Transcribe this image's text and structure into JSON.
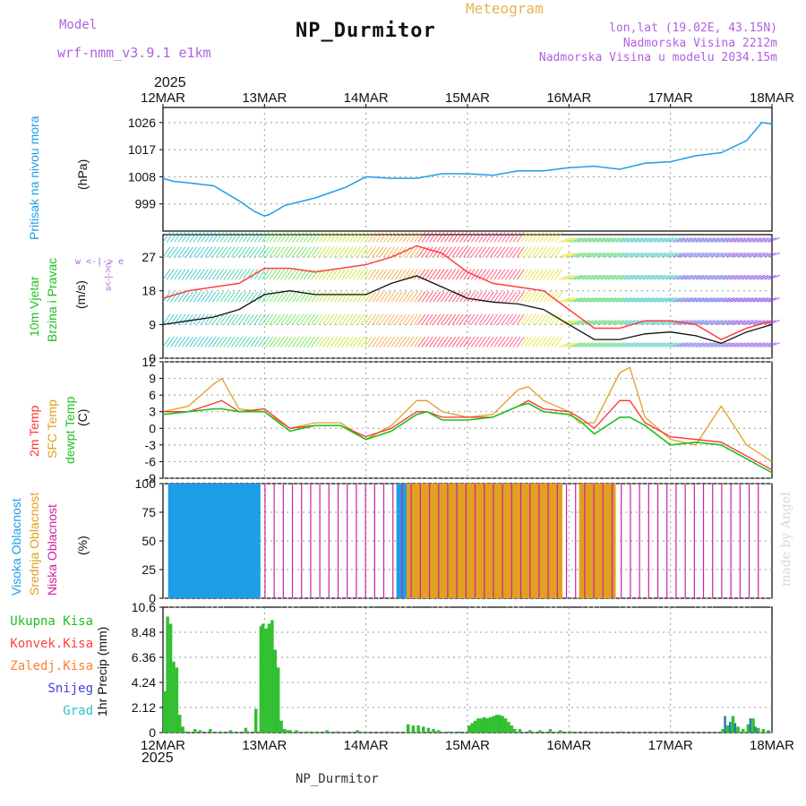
{
  "header": {
    "model_label": "Model",
    "model_value": "wrf-nmm_v3.9.1 e1km",
    "title": "NP_Durmitor",
    "meteogram": "Meteogram",
    "lonlat": "lon,lat (19.02E, 43.15N)",
    "altitude": "Nadmorska Visina 2212m",
    "model_altitude": "Nadmorska Visina u modelu 2034.15m"
  },
  "footer": {
    "station": "NP_Durmitor"
  },
  "watermark": "made by Angel",
  "time_axis": {
    "year": "2025",
    "ticks": [
      "12MAR",
      "13MAR",
      "14MAR",
      "15MAR",
      "16MAR",
      "17MAR",
      "18MAR"
    ]
  },
  "panels": {
    "pressure": {
      "label": "Pritisak na nivou mora",
      "unit": "(hPa)",
      "ticks": [
        "1026",
        "1017",
        "1008",
        "999"
      ]
    },
    "wind": {
      "label1": "10m Vjetar",
      "label2": "Brzina i Pravac",
      "unit": "(m/s)",
      "ticks": [
        "27",
        "18",
        "9",
        "0"
      ],
      "compass": "w <-|-> e",
      "compass_v": "s<-|->n"
    },
    "temp": {
      "label1": "2m Temp",
      "label2": "SFC Temp",
      "label3": "dewpt Temp",
      "unit": "(C)",
      "ticks": [
        "12",
        "9",
        "6",
        "3",
        "0",
        "-3",
        "-6",
        "-9"
      ]
    },
    "cloud": {
      "label1": "Visoka Oblacnost",
      "label2": "Srednja Oblacnost",
      "label3": "Niska Oblacnost",
      "unit": "(%)",
      "ticks": [
        "100",
        "75",
        "50",
        "25",
        "0"
      ]
    },
    "precip": {
      "legend": [
        "Ukupna Kisa",
        "Konvek.Kisa",
        "Zaledj.Kisa",
        "Snijeg",
        "Grad"
      ],
      "unit": "1hr Precip (mm)",
      "ticks": [
        "10.6",
        "8.48",
        "6.36",
        "4.24",
        "2.12",
        "0"
      ]
    }
  },
  "colors": {
    "pressure": "#1e9ee6",
    "wind_speed": "#111111",
    "gust": "#ff4040",
    "t2m": "#ff3030",
    "sfc": "#e0a020",
    "dewpt": "#20c020",
    "cloud_high": "#1e9ee6",
    "cloud_mid": "#e0a020",
    "cloud_low": "#d020a0",
    "rain": "#30c030",
    "conv": "#ff4040",
    "frz": "#ff8030",
    "snow": "#4040e0",
    "hail": "#30c0c0"
  },
  "chart_data": [
    {
      "type": "line",
      "title": "Pritisak na nivou mora",
      "ylabel": "(hPa)",
      "ylim": [
        990,
        1031
      ],
      "x_days": [
        0,
        0.1,
        0.25,
        0.5,
        0.75,
        0.9,
        1.0,
        1.05,
        1.2,
        1.5,
        1.8,
        2.0,
        2.25,
        2.5,
        2.75,
        3.0,
        3.25,
        3.5,
        3.75,
        4.0,
        4.25,
        4.5,
        4.75,
        5.0,
        5.25,
        5.5,
        5.75,
        5.9,
        6.0
      ],
      "series": [
        {
          "name": "Pritisak na nivou mora",
          "values": [
            1007.5,
            1006.5,
            1006,
            1005,
            1000,
            996.5,
            995,
            995.5,
            998.5,
            1001,
            1004.5,
            1008,
            1007.5,
            1007.5,
            1009,
            1009,
            1008.5,
            1010,
            1010,
            1011,
            1011.5,
            1010.5,
            1012.5,
            1013,
            1015,
            1016,
            1020,
            1026,
            1025.5
          ]
        }
      ]
    },
    {
      "type": "line",
      "title": "10m Vjetar Brzina i Pravac",
      "ylabel": "(m/s)",
      "ylim": [
        0,
        33
      ],
      "x_days": [
        0,
        0.25,
        0.5,
        0.75,
        1.0,
        1.25,
        1.5,
        1.75,
        2.0,
        2.25,
        2.5,
        2.75,
        3.0,
        3.25,
        3.5,
        3.75,
        4.0,
        4.25,
        4.5,
        4.75,
        5.0,
        5.25,
        5.5,
        5.75,
        6.0
      ],
      "series": [
        {
          "name": "speed",
          "values": [
            9,
            10,
            11,
            13,
            17,
            18,
            17,
            17,
            17,
            20,
            22,
            19,
            16,
            15,
            14.5,
            13,
            9,
            5,
            5,
            6.5,
            7,
            6,
            4,
            7,
            9
          ]
        },
        {
          "name": "gust",
          "values": [
            16,
            18,
            19,
            20,
            24,
            24,
            23,
            24,
            25,
            27,
            30,
            28,
            23,
            20,
            19,
            18,
            13,
            8,
            8,
            10,
            10,
            9,
            5,
            8,
            10
          ]
        }
      ]
    },
    {
      "type": "line",
      "title": "Temp",
      "ylabel": "(C)",
      "ylim": [
        -9,
        12
      ],
      "x_days": [
        0,
        0.25,
        0.5,
        0.58,
        0.75,
        1.0,
        1.25,
        1.5,
        1.75,
        2.0,
        2.25,
        2.5,
        2.6,
        2.75,
        3.0,
        3.25,
        3.5,
        3.6,
        3.75,
        4.0,
        4.1,
        4.25,
        4.5,
        4.6,
        4.75,
        5.0,
        5.25,
        5.5,
        5.75,
        6.0
      ],
      "series": [
        {
          "name": "2m Temp",
          "values": [
            3,
            3,
            4.5,
            5,
            3,
            3.5,
            0,
            0.5,
            0.5,
            -1.5,
            0,
            3,
            3,
            2,
            2,
            2,
            4,
            5,
            3.5,
            3,
            2,
            0,
            5,
            5,
            1,
            -1.5,
            -2,
            -2.5,
            -5,
            -7.5
          ]
        },
        {
          "name": "SFC Temp",
          "values": [
            3,
            4,
            8,
            9,
            3.5,
            3,
            0,
            1,
            1,
            -2,
            0.5,
            5,
            5,
            3,
            2,
            2.5,
            7,
            7.5,
            5,
            3,
            1,
            1,
            10,
            11,
            2,
            -2,
            -3,
            4,
            -3,
            -6
          ]
        },
        {
          "name": "dewpt Temp",
          "values": [
            2.5,
            3,
            3.5,
            3.5,
            3,
            3,
            -0.5,
            0.5,
            0.5,
            -2,
            -0.5,
            2.5,
            3,
            1.5,
            1.5,
            2,
            4,
            4.5,
            3,
            2.5,
            1.5,
            -1,
            2,
            2,
            0.5,
            -3,
            -2.5,
            -3,
            -5.5,
            -8
          ]
        }
      ]
    },
    {
      "type": "bar",
      "title": "Oblacnost",
      "ylabel": "(%)",
      "ylim": [
        0,
        100
      ],
      "segments": [
        {
          "series": "Visoka Oblacnost",
          "from_day": 0.05,
          "to_day": 0.95,
          "value": 100
        },
        {
          "series": "Visoka Oblacnost",
          "from_day": 2.3,
          "to_day": 2.5,
          "value": 100
        },
        {
          "series": "Visoka Oblacnost",
          "from_day": 2.9,
          "to_day": 3.0,
          "value": 100
        },
        {
          "series": "Visoka Oblacnost",
          "from_day": 3.05,
          "to_day": 3.9,
          "value": 100
        },
        {
          "series": "Srednja Oblacnost",
          "from_day": 2.4,
          "to_day": 3.1,
          "value": 100
        },
        {
          "series": "Srednja Oblacnost",
          "from_day": 3.1,
          "to_day": 3.9,
          "value": 100
        },
        {
          "series": "Srednja Oblacnost",
          "from_day": 4.1,
          "to_day": 4.45,
          "value": 100
        },
        {
          "series": "Niska Oblacnost",
          "from_day": 1.0,
          "to_day": 5.9,
          "value": 100
        }
      ]
    },
    {
      "type": "bar",
      "title": "1hr Precip",
      "ylabel": "1hr Precip (mm)",
      "ylim": [
        0,
        10.6
      ],
      "x_days": [
        0.0,
        0.03,
        0.06,
        0.09,
        0.12,
        0.15,
        0.18,
        0.21,
        0.3,
        0.35,
        0.45,
        0.55,
        0.65,
        0.8,
        0.9,
        0.95,
        0.97,
        1.0,
        1.03,
        1.06,
        1.09,
        1.12,
        1.15,
        1.18,
        1.21,
        1.24,
        1.3,
        1.4,
        1.5,
        1.6,
        1.7,
        1.9,
        2.2,
        2.4,
        2.45,
        2.5,
        2.55,
        2.6,
        2.65,
        2.7,
        2.8,
        2.9,
        3.0,
        3.03,
        3.06,
        3.09,
        3.12,
        3.15,
        3.18,
        3.21,
        3.24,
        3.27,
        3.3,
        3.33,
        3.36,
        3.39,
        3.42,
        3.45,
        3.5,
        3.6,
        3.7,
        3.8,
        3.9,
        4.0,
        4.5,
        5.0,
        5.5,
        5.55,
        5.6,
        5.65,
        5.7,
        5.75,
        5.8,
        5.85,
        5.9,
        5.95
      ],
      "series": [
        {
          "name": "Ukupna Kisa",
          "values": [
            3.5,
            9.8,
            9.2,
            6.0,
            5.5,
            1.5,
            0.5,
            0.1,
            0.3,
            0.2,
            0.3,
            0.1,
            0.2,
            0.4,
            2.0,
            9.0,
            9.2,
            8.8,
            9.2,
            9.5,
            7.0,
            5.5,
            1.0,
            0.3,
            0.2,
            0.2,
            0.2,
            0.1,
            0.1,
            0.2,
            0.1,
            0.2,
            0.1,
            0.7,
            0.6,
            0.6,
            0.5,
            0.4,
            0.3,
            0.2,
            0.1,
            0.1,
            0.6,
            0.8,
            1.0,
            1.2,
            1.2,
            1.3,
            1.2,
            1.3,
            1.4,
            1.5,
            1.5,
            1.4,
            1.2,
            0.9,
            0.6,
            0.3,
            0.3,
            0.2,
            0.2,
            0.3,
            0.2,
            0.1,
            0.1,
            0.1,
            0.3,
            0.6,
            1.4,
            0.5,
            0.3,
            0.7,
            1.2,
            0.4,
            0.3,
            0.2
          ]
        }
      ]
    }
  ]
}
